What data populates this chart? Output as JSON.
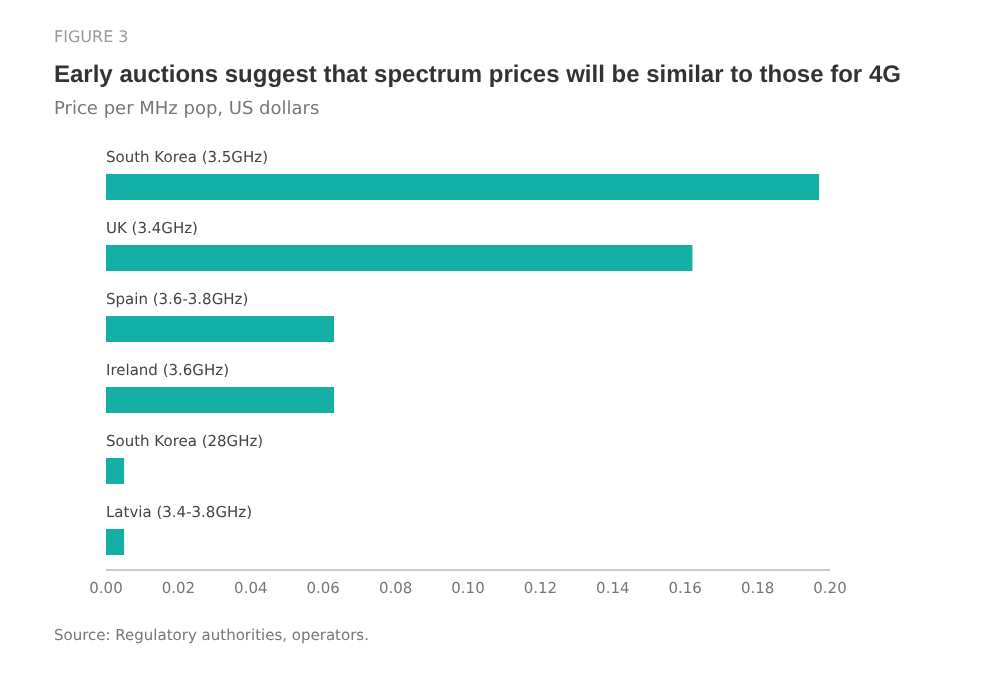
{
  "chart_data": {
    "type": "bar",
    "orientation": "horizontal",
    "title": "Early auctions suggest that spectrum prices will be similar to those for 4G",
    "subtitle": "Price per MHz pop, US dollars",
    "categories": [
      "South Korea (3.5GHz)",
      "UK (3.4GHz)",
      "Spain (3.6-3.8GHz)",
      "Ireland (3.6GHz)",
      "South Korea (28GHz)",
      "Latvia (3.4-3.8GHz)"
    ],
    "values": [
      0.197,
      0.162,
      0.063,
      0.063,
      0.005,
      0.005
    ],
    "color": "#14b0a5",
    "xlim": [
      0,
      0.2
    ],
    "xticks": [
      {
        "value": 0,
        "label": "0.00"
      },
      {
        "value": 0.02,
        "label": "0.02"
      },
      {
        "value": 0.04,
        "label": "0.04"
      },
      {
        "value": 0.06,
        "label": "0.06"
      },
      {
        "value": 0.08,
        "label": "0.08"
      },
      {
        "value": 0.1,
        "label": "0.10"
      },
      {
        "value": 0.12,
        "label": "0.12"
      },
      {
        "value": 0.14,
        "label": "0.14"
      },
      {
        "value": 0.16,
        "label": "0.16"
      },
      {
        "value": 0.18,
        "label": "0.18"
      },
      {
        "value": 0.2,
        "label": "0.20"
      }
    ],
    "grid": false,
    "annotations": [
      "FIGURE 3",
      "Source: Regulatory authorities, operators."
    ]
  }
}
